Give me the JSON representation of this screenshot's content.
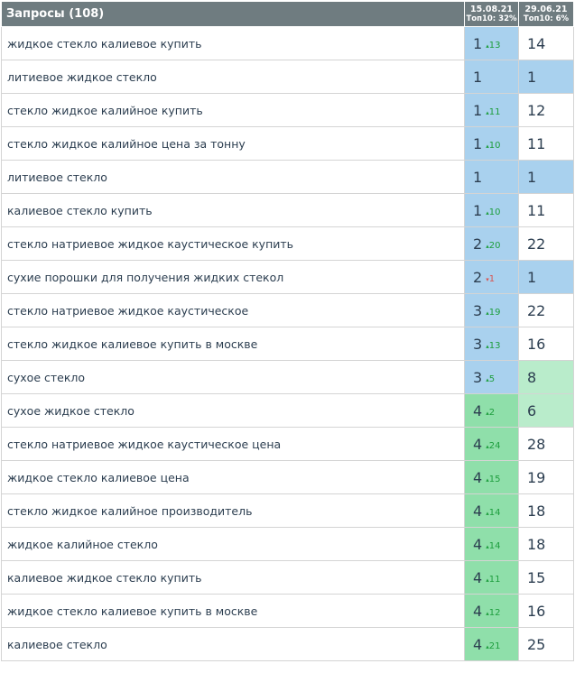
{
  "header": {
    "title": "Запросы (108)",
    "dates": [
      {
        "date": "15.08.21",
        "top10": "Топ10: 32%"
      },
      {
        "date": "29.06.21",
        "top10": "Топ10: 6%"
      }
    ]
  },
  "rows": [
    {
      "query": "жидкое стекло калиевое купить",
      "pos1": "1",
      "change": "13",
      "dir": "up",
      "pos2": "14"
    },
    {
      "query": "литиевое жидкое стекло",
      "pos1": "1",
      "change": "",
      "dir": "",
      "pos2": "1"
    },
    {
      "query": "стекло жидкое калийное купить",
      "pos1": "1",
      "change": "11",
      "dir": "up",
      "pos2": "12"
    },
    {
      "query": "стекло жидкое калийное цена за тонну",
      "pos1": "1",
      "change": "10",
      "dir": "up",
      "pos2": "11"
    },
    {
      "query": "литиевое стекло",
      "pos1": "1",
      "change": "",
      "dir": "",
      "pos2": "1"
    },
    {
      "query": "калиевое стекло купить",
      "pos1": "1",
      "change": "10",
      "dir": "up",
      "pos2": "11"
    },
    {
      "query": "стекло натриевое жидкое каустическое купить",
      "pos1": "2",
      "change": "20",
      "dir": "up",
      "pos2": "22"
    },
    {
      "query": "сухие порошки для получения жидких стекол",
      "pos1": "2",
      "change": "1",
      "dir": "down",
      "pos2": "1"
    },
    {
      "query": "стекло натриевое жидкое каустическое",
      "pos1": "3",
      "change": "19",
      "dir": "up",
      "pos2": "22"
    },
    {
      "query": "стекло жидкое калиевое купить в москве",
      "pos1": "3",
      "change": "13",
      "dir": "up",
      "pos2": "16"
    },
    {
      "query": "сухое стекло",
      "pos1": "3",
      "change": "5",
      "dir": "up",
      "pos2": "8"
    },
    {
      "query": "сухое жидкое стекло",
      "pos1": "4",
      "change": "2",
      "dir": "up",
      "pos2": "6"
    },
    {
      "query": "стекло натриевое жидкое каустическое цена",
      "pos1": "4",
      "change": "24",
      "dir": "up",
      "pos2": "28"
    },
    {
      "query": "жидкое стекло калиевое цена",
      "pos1": "4",
      "change": "15",
      "dir": "up",
      "pos2": "19"
    },
    {
      "query": "стекло жидкое калийное производитель",
      "pos1": "4",
      "change": "14",
      "dir": "up",
      "pos2": "18"
    },
    {
      "query": "жидкое калийное стекло",
      "pos1": "4",
      "change": "14",
      "dir": "up",
      "pos2": "18"
    },
    {
      "query": "калиевое жидкое стекло купить",
      "pos1": "4",
      "change": "11",
      "dir": "up",
      "pos2": "15"
    },
    {
      "query": "жидкое стекло калиевое купить в москве",
      "pos1": "4",
      "change": "12",
      "dir": "up",
      "pos2": "16"
    },
    {
      "query": "калиевое стекло",
      "pos1": "4",
      "change": "21",
      "dir": "up",
      "pos2": "25"
    }
  ],
  "colors": {
    "header_bg": "#6f7c80",
    "top1_3": "#a9d1ee",
    "top4_5": "#8fdfaa",
    "top6_10": "#b9eccb",
    "up": "#1e9e3e",
    "down": "#d9534f"
  }
}
